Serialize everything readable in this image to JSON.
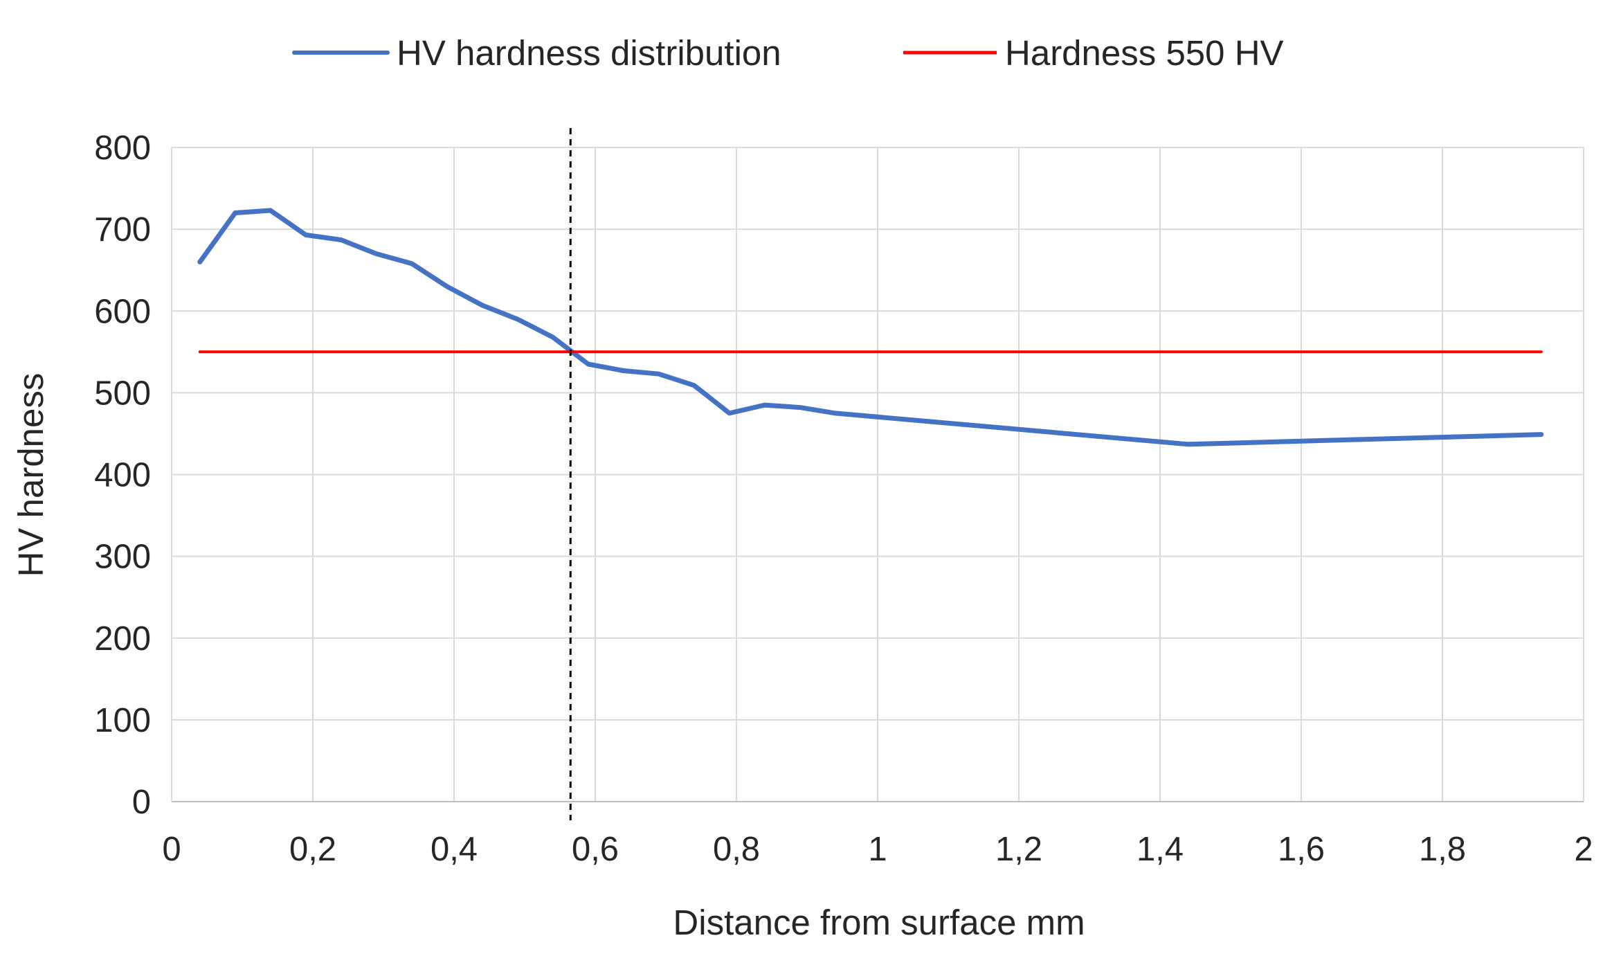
{
  "chart_data": {
    "type": "line",
    "title": "",
    "xlabel": "Distance from surface mm",
    "ylabel": "HV hardness",
    "xlim": [
      0,
      2
    ],
    "ylim": [
      0,
      800
    ],
    "grid": true,
    "legend_position": "top",
    "x_ticks": [
      0,
      0.2,
      0.4,
      0.6,
      0.8,
      1,
      1.2,
      1.4,
      1.6,
      1.8,
      2
    ],
    "x_tick_labels": [
      "0",
      "0,2",
      "0,4",
      "0,6",
      "0,8",
      "1",
      "1,2",
      "1,4",
      "1,6",
      "1,8",
      "2"
    ],
    "y_ticks": [
      0,
      100,
      200,
      300,
      400,
      500,
      600,
      700,
      800
    ],
    "y_tick_labels": [
      "0",
      "100",
      "200",
      "300",
      "400",
      "500",
      "600",
      "700",
      "800"
    ],
    "series": [
      {
        "name": "HV hardness distribution",
        "color": "#4472C4",
        "x": [
          0.04,
          0.09,
          0.14,
          0.19,
          0.24,
          0.29,
          0.34,
          0.39,
          0.44,
          0.49,
          0.54,
          0.59,
          0.64,
          0.69,
          0.74,
          0.79,
          0.84,
          0.89,
          0.94,
          1.44,
          1.94
        ],
        "values": [
          660,
          720,
          723,
          693,
          687,
          670,
          658,
          630,
          607,
          590,
          568,
          535,
          527,
          523,
          509,
          475,
          485,
          482,
          475,
          437,
          449
        ]
      },
      {
        "name": "Hardness 550 HV",
        "color": "#FF0000",
        "x": [
          0.04,
          1.94
        ],
        "values": [
          550,
          550
        ]
      }
    ],
    "reference_lines": [
      {
        "orientation": "vertical",
        "x": 0.565,
        "style": "dashed",
        "color": "#000000"
      }
    ]
  }
}
